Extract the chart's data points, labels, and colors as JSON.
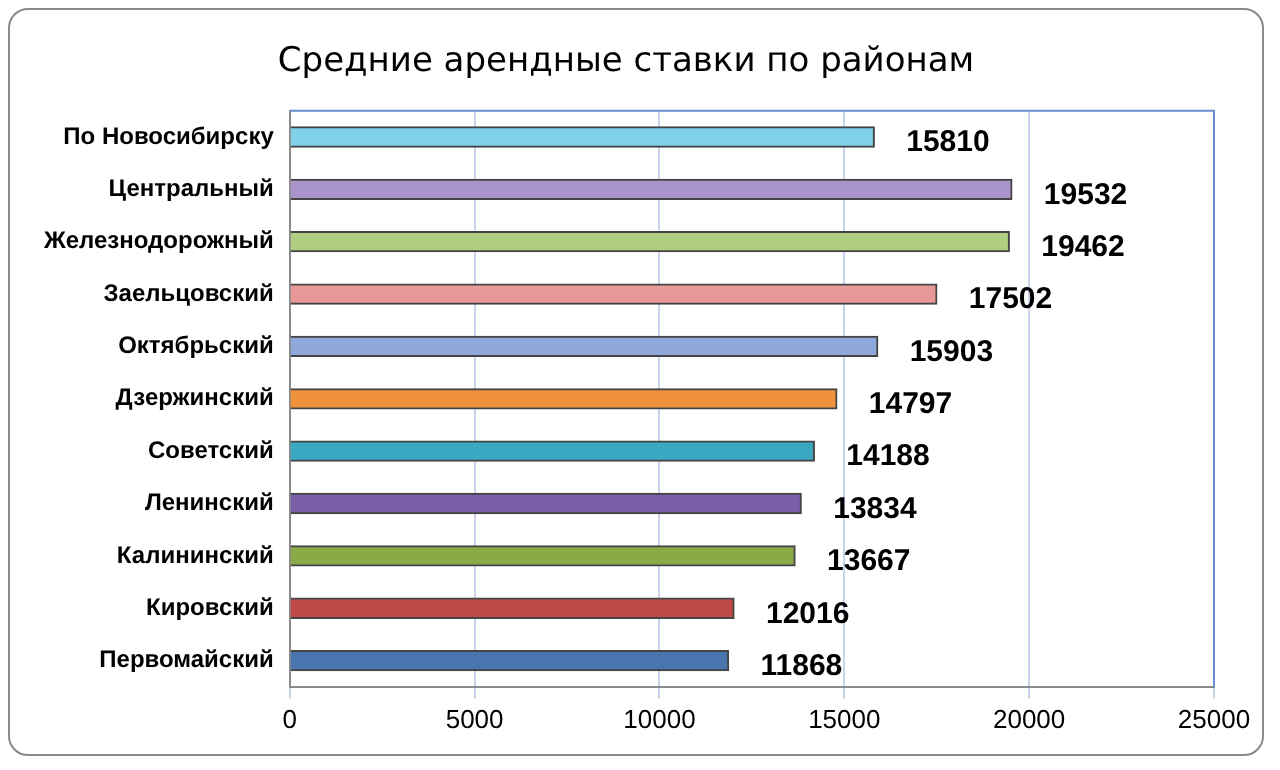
{
  "chart_data": {
    "type": "bar",
    "orientation": "horizontal",
    "title": "Средние арендные ставки по районам",
    "categories": [
      "По Новосибирску",
      "Центральный",
      "Железнодорожный",
      "Заельцовский",
      "Октябрьский",
      "Дзержинский",
      "Советский",
      "Ленинский",
      "Калининский",
      "Кировский",
      "Первомайский"
    ],
    "values": [
      15810,
      19532,
      19462,
      17502,
      15903,
      14797,
      14188,
      13834,
      13667,
      12016,
      11868
    ],
    "colors": [
      "#7fd0e8",
      "#a894c8",
      "#b0cf80",
      "#e89898",
      "#8ea8dc",
      "#f0923c",
      "#3aa8c0",
      "#7a5ea8",
      "#8aaa48",
      "#c04a48",
      "#4a76b0"
    ],
    "xlim": [
      0,
      25000
    ],
    "xticks": [
      0,
      5000,
      10000,
      15000,
      20000,
      25000
    ],
    "grid": "x",
    "data_labels": true,
    "legend": false
  }
}
